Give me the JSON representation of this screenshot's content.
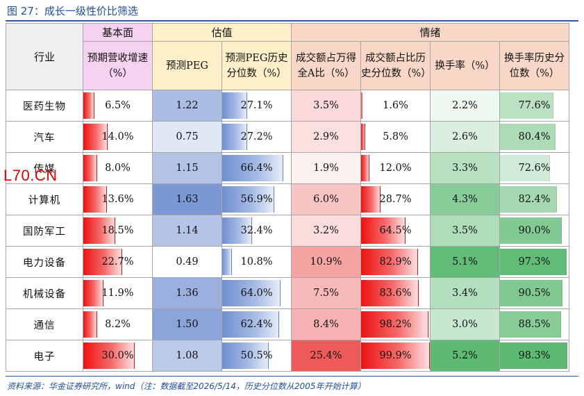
{
  "title": "图 27：成长一级性价比筛选",
  "table": {
    "group_headers": [
      "基本面",
      "估值",
      "情绪"
    ],
    "industry_header": "行业",
    "columns": [
      {
        "label": "预期营收增速（%）"
      },
      {
        "label": "预测PEG"
      },
      {
        "label": "预测PEG历史分位数（%）"
      },
      {
        "label": "成交额占万得全A比（%）"
      },
      {
        "label": "成交额占比历史分位数（%）"
      },
      {
        "label": "换手率（%）"
      },
      {
        "label": "换手率历史分位数（%）"
      }
    ],
    "rows": [
      {
        "industry": "医药生物",
        "values": [
          "6.5%",
          "1.22",
          "27.1%",
          "3.5%",
          "1.6%",
          "2.2%",
          "77.6%"
        ]
      },
      {
        "industry": "汽车",
        "values": [
          "14.0%",
          "0.75",
          "27.2%",
          "2.9%",
          "5.8%",
          "2.6%",
          "80.4%"
        ]
      },
      {
        "industry": "传媒",
        "values": [
          "8.0%",
          "1.15",
          "66.4%",
          "1.9%",
          "12.0%",
          "3.3%",
          "72.6%"
        ]
      },
      {
        "industry": "计算机",
        "values": [
          "13.6%",
          "1.63",
          "56.9%",
          "6.0%",
          "28.7%",
          "4.3%",
          "82.4%"
        ]
      },
      {
        "industry": "国防军工",
        "values": [
          "18.5%",
          "1.14",
          "32.4%",
          "3.2%",
          "64.5%",
          "3.5%",
          "90.0%"
        ]
      },
      {
        "industry": "电力设备",
        "values": [
          "22.7%",
          "0.49",
          "10.8%",
          "10.9%",
          "82.9%",
          "5.1%",
          "97.3%"
        ]
      },
      {
        "industry": "机械设备",
        "values": [
          "11.9%",
          "1.36",
          "64.0%",
          "7.5%",
          "83.6%",
          "3.4%",
          "90.5%"
        ]
      },
      {
        "industry": "通信",
        "values": [
          "8.2%",
          "1.50",
          "62.4%",
          "8.4%",
          "98.2%",
          "3.0%",
          "88.5%"
        ]
      },
      {
        "industry": "电子",
        "values": [
          "30.0%",
          "1.08",
          "50.5%",
          "25.4%",
          "99.9%",
          "5.2%",
          "98.3%"
        ]
      }
    ]
  },
  "colors": {
    "header_pink": "#f5d3f0",
    "header_yellow": "#fdf0c8",
    "header_salmon": "#f8d7c7",
    "header_gray": "#efefef",
    "title_blue": "#1f4e9c"
  },
  "source": "资料来源：华金证券研究所，wind（注：数据截至2026/5/14，历史分位数从2005年开始计算）",
  "watermark": "L70.CN"
}
